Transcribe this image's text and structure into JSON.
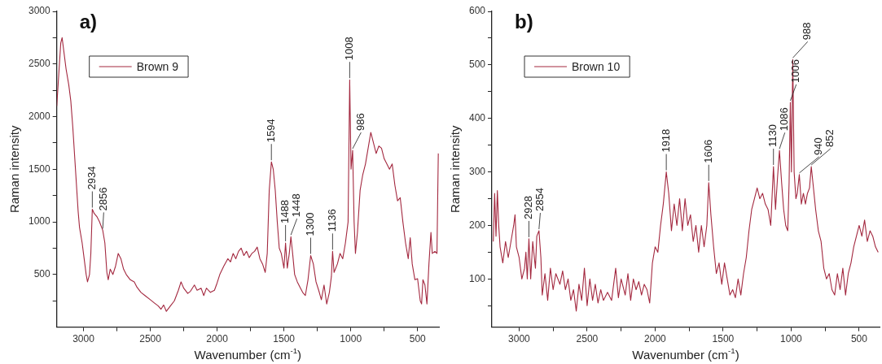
{
  "chart_data": [
    {
      "type": "line",
      "title": "a)",
      "xlabel": "Wavenumber (cm$^{-1}$)",
      "ylabel": "Raman intensity",
      "legend": "top left",
      "marker": "none",
      "grid": false,
      "xlim": [
        3200,
        340
      ],
      "ylim": [
        0,
        3000
      ],
      "xticks": [
        3000,
        {
          "value": 2750,
          "label": null
        },
        2500,
        {
          "value": 2250,
          "label": null
        },
        2000,
        {
          "value": 1750,
          "label": null
        },
        1500,
        {
          "value": 1250,
          "label": null
        },
        1000,
        {
          "value": 750,
          "label": null
        },
        500
      ],
      "yticks": [
        {
          "value": 250,
          "label": null
        },
        500,
        {
          "value": 750,
          "label": null
        },
        1000,
        {
          "value": 1250,
          "label": null
        },
        1500,
        {
          "value": 1750,
          "label": null
        },
        2000,
        {
          "value": 2250,
          "label": null
        },
        2500,
        {
          "value": 2750,
          "label": null
        },
        3000
      ],
      "series": [
        {
          "name": "Brown 9",
          "color": "#a3283f",
          "x": [
            3200,
            3185,
            3170,
            3160,
            3145,
            3130,
            3110,
            3095,
            3080,
            3060,
            3040,
            3030,
            3010,
            2995,
            2980,
            2970,
            2955,
            2945,
            2934,
            2920,
            2900,
            2880,
            2856,
            2840,
            2825,
            2815,
            2800,
            2780,
            2760,
            2740,
            2720,
            2700,
            2680,
            2650,
            2620,
            2600,
            2570,
            2540,
            2500,
            2470,
            2440,
            2420,
            2400,
            2380,
            2350,
            2320,
            2290,
            2270,
            2250,
            2220,
            2200,
            2170,
            2150,
            2120,
            2100,
            2080,
            2050,
            2020,
            2000,
            1980,
            1950,
            1920,
            1900,
            1880,
            1860,
            1840,
            1820,
            1800,
            1780,
            1760,
            1740,
            1720,
            1700,
            1680,
            1660,
            1640,
            1625,
            1610,
            1594,
            1580,
            1565,
            1550,
            1535,
            1520,
            1500,
            1488,
            1475,
            1460,
            1448,
            1435,
            1420,
            1400,
            1380,
            1360,
            1340,
            1320,
            1300,
            1280,
            1260,
            1240,
            1220,
            1200,
            1180,
            1160,
            1145,
            1136,
            1125,
            1100,
            1080,
            1060,
            1040,
            1020,
            1008,
            998,
            986,
            975,
            965,
            950,
            930,
            910,
            890,
            870,
            850,
            830,
            810,
            790,
            770,
            750,
            730,
            710,
            690,
            670,
            650,
            630,
            610,
            590,
            570,
            555,
            540,
            520,
            500,
            480,
            470,
            460,
            445,
            430,
            415,
            400,
            390,
            370,
            355,
            345
          ],
          "values": [
            2100,
            2400,
            2700,
            2750,
            2600,
            2450,
            2300,
            2150,
            1900,
            1500,
            1100,
            950,
            800,
            650,
            500,
            430,
            500,
            700,
            1120,
            1080,
            1050,
            1000,
            920,
            800,
            520,
            450,
            550,
            500,
            580,
            700,
            650,
            550,
            500,
            450,
            430,
            380,
            330,
            300,
            260,
            230,
            200,
            170,
            210,
            150,
            200,
            250,
            350,
            430,
            370,
            320,
            340,
            400,
            350,
            370,
            300,
            370,
            330,
            350,
            420,
            500,
            580,
            650,
            620,
            700,
            650,
            720,
            750,
            680,
            720,
            660,
            700,
            720,
            760,
            650,
            600,
            520,
            700,
            1300,
            1570,
            1500,
            1300,
            1000,
            750,
            700,
            560,
            800,
            560,
            700,
            860,
            700,
            500,
            430,
            380,
            330,
            300,
            450,
            680,
            600,
            430,
            350,
            260,
            400,
            220,
            330,
            480,
            720,
            520,
            600,
            700,
            650,
            800,
            1000,
            2350,
            1500,
            1680,
            1000,
            700,
            900,
            1300,
            1450,
            1550,
            1700,
            1850,
            1750,
            1650,
            1720,
            1700,
            1600,
            1550,
            1500,
            1550,
            1350,
            1200,
            1230,
            1000,
            800,
            650,
            850,
            600,
            450,
            460,
            250,
            220,
            450,
            400,
            220,
            600,
            900,
            700,
            720,
            700,
            1650
          ]
        }
      ],
      "annotations": [
        {
          "text": "2934",
          "x": 2934,
          "y": 1120
        },
        {
          "text": "2856",
          "x": 2856,
          "y": 920
        },
        {
          "text": "1594",
          "x": 1594,
          "y": 1570
        },
        {
          "text": "1488",
          "x": 1488,
          "y": 800
        },
        {
          "text": "1448",
          "x": 1448,
          "y": 860
        },
        {
          "text": "1300",
          "x": 1300,
          "y": 680
        },
        {
          "text": "1136",
          "x": 1136,
          "y": 720
        },
        {
          "text": "1008",
          "x": 1008,
          "y": 2350
        },
        {
          "text": "986",
          "x": 986,
          "y": 1680
        }
      ]
    },
    {
      "type": "line",
      "title": "b)",
      "xlabel": "Wavenumber (cm$^{-1}$)",
      "ylabel": "Raman intensity",
      "legend": "top left",
      "marker": "none",
      "grid": false,
      "xlim": [
        3200,
        350
      ],
      "ylim": [
        10,
        600
      ],
      "xticks": [
        3000,
        {
          "value": 2750,
          "label": null
        },
        2500,
        {
          "value": 2250,
          "label": null
        },
        2000,
        {
          "value": 1750,
          "label": null
        },
        1500,
        {
          "value": 1250,
          "label": null
        },
        1000,
        {
          "value": 750,
          "label": null
        },
        500
      ],
      "yticks": [
        {
          "value": 50,
          "label": null
        },
        100,
        {
          "value": 150,
          "label": null
        },
        200,
        {
          "value": 250,
          "label": null
        },
        300,
        {
          "value": 350,
          "label": null
        },
        400,
        {
          "value": 450,
          "label": null
        },
        500,
        {
          "value": 550,
          "label": null
        },
        600
      ],
      "series": [
        {
          "name": "Brown 10",
          "color": "#a3283f",
          "x": [
            3190,
            3180,
            3170,
            3160,
            3150,
            3140,
            3120,
            3100,
            3080,
            3060,
            3040,
            3030,
            3020,
            3000,
            2980,
            2960,
            2950,
            2940,
            2928,
            2915,
            2900,
            2880,
            2870,
            2854,
            2840,
            2830,
            2810,
            2790,
            2770,
            2750,
            2730,
            2700,
            2680,
            2660,
            2640,
            2620,
            2600,
            2580,
            2560,
            2540,
            2520,
            2500,
            2480,
            2460,
            2440,
            2420,
            2400,
            2380,
            2350,
            2320,
            2290,
            2270,
            2250,
            2220,
            2200,
            2180,
            2160,
            2140,
            2120,
            2100,
            2080,
            2060,
            2040,
            2020,
            2000,
            1980,
            1960,
            1940,
            1918,
            1900,
            1880,
            1860,
            1840,
            1820,
            1800,
            1780,
            1760,
            1740,
            1720,
            1700,
            1680,
            1660,
            1640,
            1620,
            1606,
            1590,
            1570,
            1550,
            1530,
            1510,
            1490,
            1470,
            1450,
            1430,
            1410,
            1390,
            1370,
            1350,
            1330,
            1310,
            1290,
            1270,
            1250,
            1230,
            1210,
            1190,
            1170,
            1150,
            1130,
            1115,
            1100,
            1086,
            1070,
            1055,
            1040,
            1025,
            1015,
            1006,
            998,
            988,
            978,
            965,
            955,
            940,
            925,
            910,
            895,
            880,
            865,
            852,
            840,
            820,
            800,
            780,
            760,
            740,
            720,
            700,
            680,
            660,
            640,
            620,
            600,
            580,
            560,
            540,
            520,
            500,
            480,
            460,
            440,
            420,
            400,
            380,
            360
          ],
          "values": [
            170,
            260,
            180,
            265,
            200,
            160,
            130,
            170,
            140,
            170,
            200,
            220,
            160,
            140,
            100,
            120,
            150,
            100,
            175,
            100,
            170,
            120,
            180,
            190,
            140,
            70,
            110,
            60,
            120,
            80,
            110,
            90,
            115,
            80,
            100,
            60,
            80,
            40,
            90,
            60,
            120,
            50,
            100,
            60,
            90,
            55,
            80,
            60,
            75,
            60,
            120,
            65,
            100,
            70,
            110,
            60,
            100,
            80,
            95,
            70,
            90,
            80,
            55,
            130,
            160,
            150,
            200,
            240,
            300,
            260,
            190,
            240,
            200,
            250,
            190,
            250,
            200,
            220,
            170,
            200,
            150,
            200,
            160,
            200,
            280,
            220,
            160,
            110,
            130,
            90,
            130,
            100,
            70,
            80,
            65,
            100,
            70,
            110,
            140,
            190,
            230,
            250,
            270,
            250,
            260,
            240,
            230,
            200,
            310,
            230,
            290,
            340,
            280,
            230,
            200,
            190,
            280,
            430,
            300,
            510,
            300,
            250,
            260,
            295,
            240,
            260,
            240,
            260,
            270,
            310,
            280,
            230,
            190,
            170,
            120,
            100,
            110,
            80,
            70,
            110,
            80,
            120,
            70,
            110,
            130,
            160,
            180,
            200,
            180,
            210,
            170,
            190,
            180,
            160,
            150
          ]
        }
      ],
      "annotations": [
        {
          "text": "2928",
          "x": 2928,
          "y": 175
        },
        {
          "text": "2854",
          "x": 2854,
          "y": 190
        },
        {
          "text": "1918",
          "x": 1918,
          "y": 300
        },
        {
          "text": "1606",
          "x": 1606,
          "y": 280
        },
        {
          "text": "1130",
          "x": 1130,
          "y": 310
        },
        {
          "text": "1086",
          "x": 1086,
          "y": 340
        },
        {
          "text": "1006",
          "x": 1006,
          "y": 430
        },
        {
          "text": "988",
          "x": 988,
          "y": 510
        },
        {
          "text": "940",
          "x": 940,
          "y": 295
        },
        {
          "text": "852",
          "x": 852,
          "y": 310
        }
      ]
    }
  ]
}
